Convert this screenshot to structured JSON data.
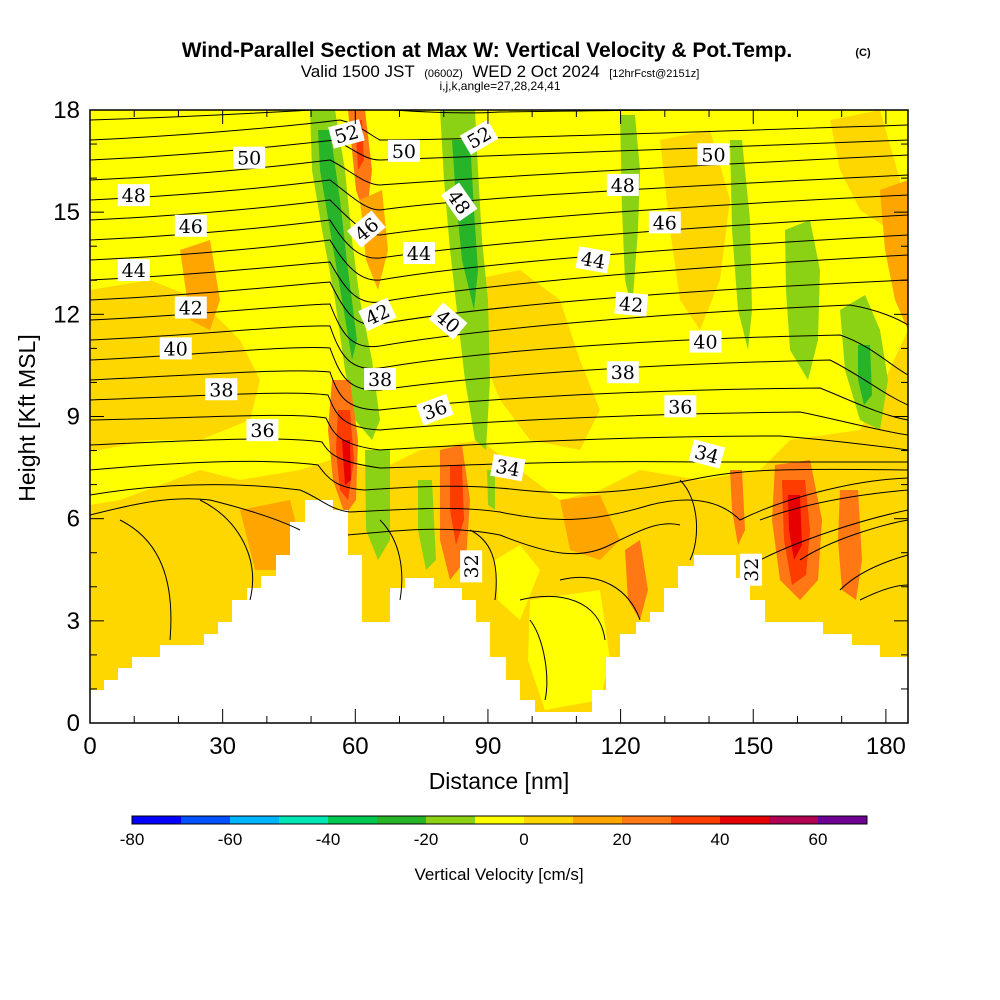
{
  "title": {
    "main": "Wind-Parallel Section at Max W: Vertical Velocity & Pot.Temp.",
    "copyright": "(C)",
    "valid_prefix": "Valid 1500 JST",
    "valid_z": "(0600Z)",
    "valid_date": "WED 2 Oct 2024",
    "forecast": "[12hrFcst@2151z]",
    "indices": "i,j,k,angle=27,28,24,41"
  },
  "chart_data": {
    "type": "heatmap",
    "title": "Wind-Parallel Section at Max W: Vertical Velocity & Pot.Temp.",
    "xlabel": "Distance [nm]",
    "ylabel": "Height [Kft MSL]",
    "xlim": [
      0,
      185
    ],
    "ylim": [
      0,
      18
    ],
    "x_ticks": [
      0,
      30,
      60,
      90,
      120,
      150,
      180
    ],
    "y_ticks": [
      0,
      3,
      6,
      9,
      12,
      15,
      18
    ],
    "grid": false,
    "colorbar": {
      "title": "Vertical Velocity [cm/s]",
      "placement": "bottom",
      "bounds": [
        -80,
        70
      ],
      "step": 10,
      "tick_labels": [
        -80,
        -60,
        -40,
        -20,
        0,
        20,
        40,
        60
      ],
      "colors": [
        "#0000ff",
        "#0050ff",
        "#00b4ff",
        "#00e6b4",
        "#00c850",
        "#28b428",
        "#8cd214",
        "#ffff00",
        "#ffd700",
        "#ffa500",
        "#ff7814",
        "#ff3c00",
        "#e60000",
        "#b40050",
        "#6e0096"
      ]
    },
    "contour_field": "Potential Temperature",
    "contour_labels": [
      {
        "text": "52",
        "x": 58.0,
        "y": 17.3,
        "angle": -15
      },
      {
        "text": "50",
        "x": 36.0,
        "y": 16.6,
        "angle": 0
      },
      {
        "text": "50",
        "x": 71.0,
        "y": 16.8,
        "angle": 0
      },
      {
        "text": "52",
        "x": 88.0,
        "y": 17.2,
        "angle": -30
      },
      {
        "text": "50",
        "x": 141.0,
        "y": 16.7,
        "angle": 0
      },
      {
        "text": "48",
        "x": 9.9,
        "y": 15.5,
        "angle": 0
      },
      {
        "text": "48",
        "x": 83.5,
        "y": 15.3,
        "angle": 55
      },
      {
        "text": "48",
        "x": 120.5,
        "y": 15.8,
        "angle": 0
      },
      {
        "text": "46",
        "x": 22.8,
        "y": 14.6,
        "angle": 0
      },
      {
        "text": "46",
        "x": 62.5,
        "y": 14.5,
        "angle": -40
      },
      {
        "text": "46",
        "x": 130.0,
        "y": 14.7,
        "angle": 0
      },
      {
        "text": "44",
        "x": 9.9,
        "y": 13.3,
        "angle": 0
      },
      {
        "text": "44",
        "x": 74.4,
        "y": 13.8,
        "angle": 0
      },
      {
        "text": "44",
        "x": 113.8,
        "y": 13.6,
        "angle": 10
      },
      {
        "text": "42",
        "x": 22.8,
        "y": 12.2,
        "angle": 0
      },
      {
        "text": "42",
        "x": 65.0,
        "y": 12.0,
        "angle": -25
      },
      {
        "text": "42",
        "x": 122.4,
        "y": 12.3,
        "angle": 5
      },
      {
        "text": "40",
        "x": 19.4,
        "y": 11.0,
        "angle": 0
      },
      {
        "text": "40",
        "x": 81.0,
        "y": 11.8,
        "angle": 40
      },
      {
        "text": "40",
        "x": 139.2,
        "y": 11.2,
        "angle": 0
      },
      {
        "text": "38",
        "x": 29.7,
        "y": 9.8,
        "angle": 0
      },
      {
        "text": "38",
        "x": 65.6,
        "y": 10.1,
        "angle": 0
      },
      {
        "text": "38",
        "x": 120.5,
        "y": 10.3,
        "angle": 0
      },
      {
        "text": "36",
        "x": 39.0,
        "y": 8.6,
        "angle": 0
      },
      {
        "text": "36",
        "x": 78.0,
        "y": 9.2,
        "angle": -20
      },
      {
        "text": "36",
        "x": 133.5,
        "y": 9.3,
        "angle": 0
      },
      {
        "text": "34",
        "x": 94.5,
        "y": 7.5,
        "angle": 10
      },
      {
        "text": "34",
        "x": 139.5,
        "y": 7.9,
        "angle": 15
      },
      {
        "text": "32",
        "x": 86.2,
        "y": 4.6,
        "angle": -90
      },
      {
        "text": "32",
        "x": 149.5,
        "y": 4.5,
        "angle": -90
      }
    ]
  }
}
